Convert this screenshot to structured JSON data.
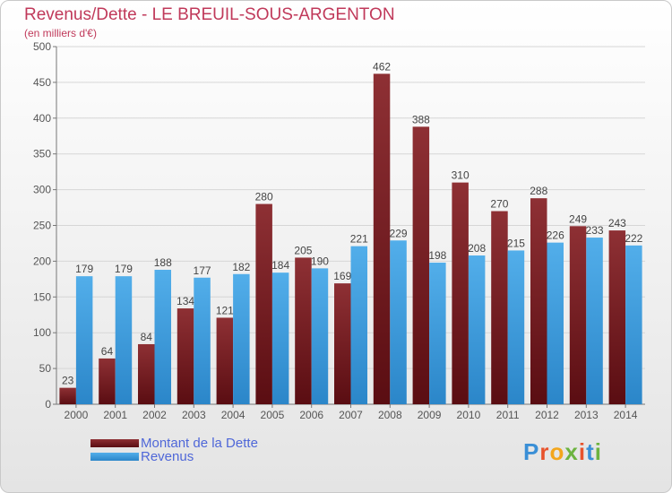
{
  "title": "Revenus/Dette - LE BREUIL-SOUS-ARGENTON",
  "subtitle": "(en milliers d'€)",
  "colors": {
    "dette": "#7a1e23",
    "revenus": "#3f9fe0",
    "title": "#c0395a",
    "legend_text": "#4f67d8"
  },
  "legend": {
    "items": [
      "Montant de la Dette",
      "Revenus"
    ]
  },
  "logo": {
    "text": "Proxiti",
    "letter_colors": [
      "#3a8fd6",
      "#e8532c",
      "#f3a61c",
      "#6cb33f",
      "#e8532c",
      "#3a8fd6",
      "#6cb33f"
    ]
  },
  "chart_data": {
    "type": "bar",
    "categories": [
      "2000",
      "2001",
      "2002",
      "2003",
      "2004",
      "2005",
      "2006",
      "2007",
      "2008",
      "2009",
      "2010",
      "2011",
      "2012",
      "2013",
      "2014"
    ],
    "series": [
      {
        "name": "Montant de la Dette",
        "values": [
          23,
          64,
          84,
          134,
          121,
          280,
          205,
          169,
          462,
          388,
          310,
          270,
          288,
          249,
          243
        ]
      },
      {
        "name": "Revenus",
        "values": [
          179,
          179,
          188,
          177,
          182,
          184,
          190,
          221,
          229,
          198,
          208,
          215,
          226,
          233,
          222
        ]
      }
    ],
    "y_ticks": [
      0,
      50,
      100,
      150,
      200,
      250,
      300,
      350,
      400,
      450,
      500
    ],
    "ylim": [
      0,
      500
    ],
    "grid": true,
    "legend_position": "bottom-left"
  }
}
